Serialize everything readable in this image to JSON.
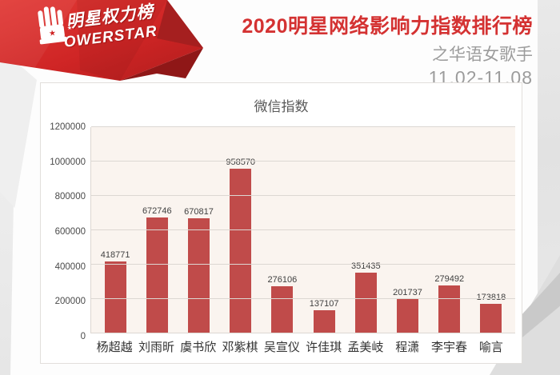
{
  "logo": {
    "title_cn": "明星权力榜",
    "title_en": "OWERSTAR",
    "fist_icon": "raised-fist-icon",
    "star_glyph": "★"
  },
  "header": {
    "title": "2020明星网络影响力指数排行榜",
    "subtitle": "之华语女歌手",
    "date_range": "11.02-11.08"
  },
  "colors": {
    "accent_red": "#d43232",
    "muted_gray": "#9c9c9c",
    "bar": "#c04b4a",
    "plot_bg": "#faf4ef",
    "gridline": "#dcd7d2",
    "ribbon_red": "#cf2525"
  },
  "chart_data": {
    "type": "bar",
    "title": "微信指数",
    "categories": [
      "杨超越",
      "刘雨昕",
      "虞书欣",
      "邓紫棋",
      "吴宣仪",
      "许佳琪",
      "孟美岐",
      "程潇",
      "李宇春",
      "喻言"
    ],
    "values": [
      418771,
      672746,
      670817,
      958570,
      276106,
      137107,
      351435,
      201737,
      279492,
      173818
    ],
    "xlabel": "",
    "ylabel": "",
    "ylim": [
      0,
      1200000
    ],
    "yticks": [
      0,
      200000,
      400000,
      600000,
      800000,
      1000000,
      1200000
    ],
    "grid": true,
    "legend_position": "none",
    "value_labels": true,
    "bar_color": "#c04b4a"
  }
}
